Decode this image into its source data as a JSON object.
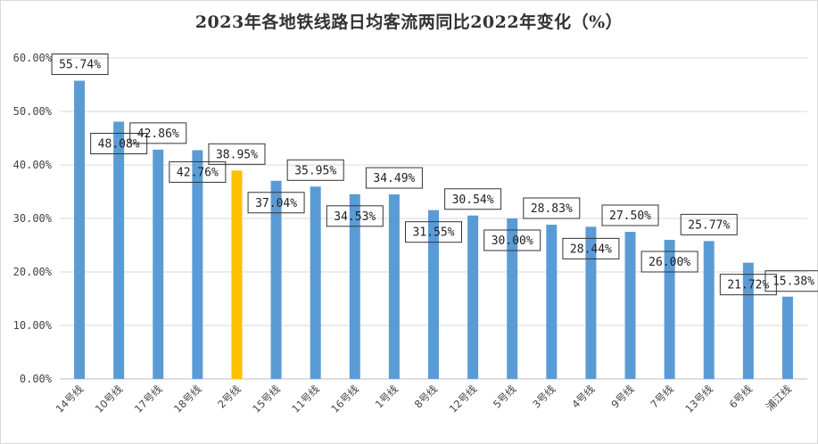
{
  "chart_data": {
    "type": "bar",
    "title": "2023年各地铁线路日均客流两同比2022年变化（%）",
    "xlabel": "",
    "ylabel": "",
    "ylim": [
      0,
      60
    ],
    "y_ticks": [
      0,
      10,
      20,
      30,
      40,
      50,
      60
    ],
    "y_tick_labels": [
      "0.00%",
      "10.00%",
      "20.00%",
      "30.00%",
      "40.00%",
      "50.00%",
      "60.00%"
    ],
    "grid": true,
    "legend": "none",
    "categories": [
      "14号线",
      "10号线",
      "17号线",
      "18号线",
      "2号线",
      "15号线",
      "11号线",
      "16号线",
      "1号线",
      "8号线",
      "12号线",
      "5号线",
      "3号线",
      "4号线",
      "9号线",
      "7号线",
      "13号线",
      "6号线",
      "浦江线"
    ],
    "values": [
      55.74,
      48.08,
      42.86,
      42.76,
      38.95,
      37.04,
      35.95,
      34.53,
      34.49,
      31.55,
      30.54,
      30.0,
      28.83,
      28.44,
      27.5,
      26.0,
      25.77,
      21.72,
      15.38
    ],
    "data_labels": [
      "55.74%",
      "48.08%",
      "42.86%",
      "42.76%",
      "38.95%",
      "37.04%",
      "35.95%",
      "34.53%",
      "34.49%",
      "31.55%",
      "30.54%",
      "30.00%",
      "28.83%",
      "28.44%",
      "27.50%",
      "26.00%",
      "25.77%",
      "21.72%",
      "15.38%"
    ],
    "highlight_category": "2号线",
    "colors": {
      "bar": "#5b9bd5",
      "highlight": "#ffc000",
      "grid": "#d9d9d9",
      "axis": "#bfbfbf",
      "label_border": "#333333"
    }
  }
}
